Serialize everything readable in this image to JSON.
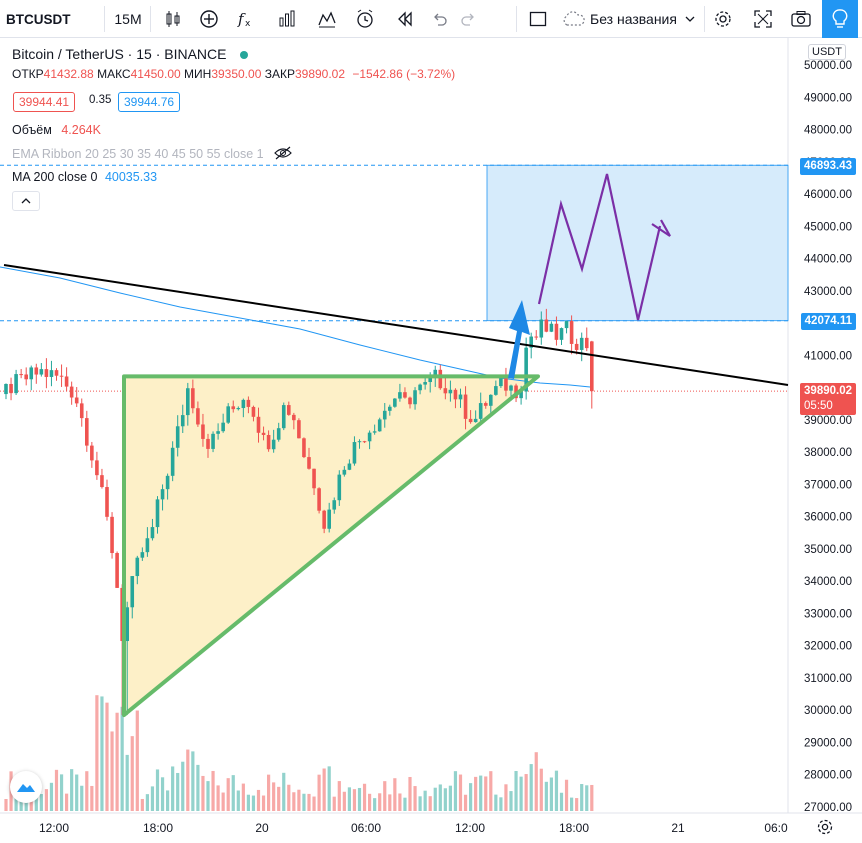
{
  "toolbar": {
    "symbol": "BTCUSDT",
    "interval": "15M",
    "layout_name": "Без названия",
    "icons": [
      "candles-icon",
      "add-indicator-icon",
      "fx-icon",
      "bars-icon",
      "compare-icon",
      "alert-icon",
      "replay-icon",
      "undo-icon",
      "redo-icon",
      "fullscreen-square-icon",
      "cloud-save-icon",
      "settings-gear-icon",
      "expand-icon",
      "camera-icon",
      "lightbulb-icon"
    ]
  },
  "legend": {
    "title": "Bitcoin / TetherUS · 15 · BINANCE",
    "open_label": "ОТКР",
    "open_value": "41432.88",
    "high_label": "МАКС",
    "high_value": "41450.00",
    "low_label": "МИН",
    "low_value": "39350.00",
    "close_label": "ЗАКР",
    "close_value": "39890.02",
    "change": "−1542.86 (−3.72%)",
    "bid": "39944.41",
    "spread": "0.35",
    "ask": "39944.76",
    "volume_label": "Объём",
    "volume_value": "4.264K",
    "ema_ribbon": "EMA Ribbon 20 25 30 35 40 45 50 55 close 1",
    "ma_label": "MA 200 close 0",
    "ma_value": "40035.33",
    "collapse": "^"
  },
  "axis": {
    "currency": "USDT",
    "price_ticks": [
      "50000.00",
      "49000.00",
      "48000.00",
      "47000.00",
      "46000.00",
      "45000.00",
      "44000.00",
      "43000.00",
      "42000.00",
      "41000.00",
      "40000.00",
      "39000.00",
      "38000.00",
      "37000.00",
      "36000.00",
      "35000.00",
      "34000.00",
      "33000.00",
      "32000.00",
      "31000.00",
      "30000.00",
      "29000.00",
      "28000.00",
      "27000.00"
    ],
    "time_ticks": [
      "12:00",
      "18:00",
      "20",
      "06:00",
      "12:00",
      "18:00",
      "21",
      "06:0"
    ],
    "tag_upper": "46893.43",
    "tag_lower": "42074.11",
    "tag_last": "39890.02",
    "tag_countdown": "05:50"
  },
  "colors": {
    "up": "#26a69a",
    "down": "#ef5350",
    "ma": "#2196f3",
    "triangle": "#66bb6a",
    "triangle_fill": "#fdf0c8",
    "zone": "#d6ebfb",
    "zone_line": "#2196f3",
    "forecast": "#7b2fa6",
    "trend": "#000000",
    "arrow": "#1e88e5"
  },
  "chart_data": {
    "type": "candlestick",
    "symbol": "BTCUSDT",
    "interval": "15",
    "ylim": [
      26800,
      50700
    ],
    "candles_ohlc_approx": [
      [
        40000,
        40200,
        39500,
        39700
      ],
      [
        39700,
        40300,
        39400,
        40100
      ],
      [
        40100,
        40600,
        39900,
        40400
      ],
      [
        40400,
        40800,
        40100,
        40300
      ],
      [
        40300,
        40500,
        39600,
        39800
      ],
      [
        39800,
        40100,
        38100,
        38500
      ],
      [
        38500,
        38700,
        36800,
        37400
      ],
      [
        37400,
        37800,
        34200,
        34500
      ],
      [
        34500,
        35200,
        31500,
        32200
      ],
      [
        32200,
        33800,
        31900,
        33400
      ],
      [
        33400,
        35000,
        33000,
        34600
      ],
      [
        34600,
        36200,
        34300,
        35800
      ],
      [
        35800,
        38000,
        35500,
        37600
      ],
      [
        37600,
        39400,
        37200,
        39100
      ],
      [
        39100,
        40500,
        38800,
        40100
      ],
      [
        40100,
        40400,
        39000,
        39300
      ],
      [
        39300,
        39800,
        38200,
        38600
      ],
      [
        38600,
        39200,
        38100,
        38900
      ],
      [
        38900,
        39600,
        38500,
        39400
      ],
      [
        39400,
        40000,
        39000,
        39700
      ],
      [
        39700,
        39900,
        38900,
        39100
      ],
      [
        39100,
        39300,
        37700,
        38000
      ],
      [
        38000,
        38900,
        37700,
        38700
      ],
      [
        38700,
        39600,
        38500,
        39300
      ],
      [
        39300,
        39700,
        38400,
        38700
      ],
      [
        38700,
        38800,
        37300,
        37600
      ],
      [
        37600,
        37800,
        35500,
        35900
      ],
      [
        35900,
        37400,
        35600,
        37100
      ],
      [
        37100,
        38400,
        36900,
        38100
      ],
      [
        38100,
        38900,
        37900,
        38700
      ],
      [
        38700,
        39500,
        38500,
        39200
      ],
      [
        39200,
        39800,
        38900,
        39600
      ],
      [
        39600,
        40100,
        39300,
        39900
      ],
      [
        39900,
        40600,
        39700,
        40300
      ],
      [
        40300,
        40500,
        39400,
        39700
      ],
      [
        39700,
        39900,
        38800,
        39100
      ],
      [
        39100,
        39800,
        38900,
        39600
      ],
      [
        39600,
        40400,
        39400,
        40100
      ],
      [
        40100,
        42700,
        40000,
        42400
      ],
      [
        42400,
        42900,
        41700,
        42000
      ],
      [
        42000,
        42200,
        41400,
        41700
      ],
      [
        41700,
        42000,
        41300,
        41800
      ],
      [
        41432,
        41450,
        39350,
        39890
      ]
    ],
    "volume_peaks": {
      "min": 0,
      "max": 1
    }
  }
}
